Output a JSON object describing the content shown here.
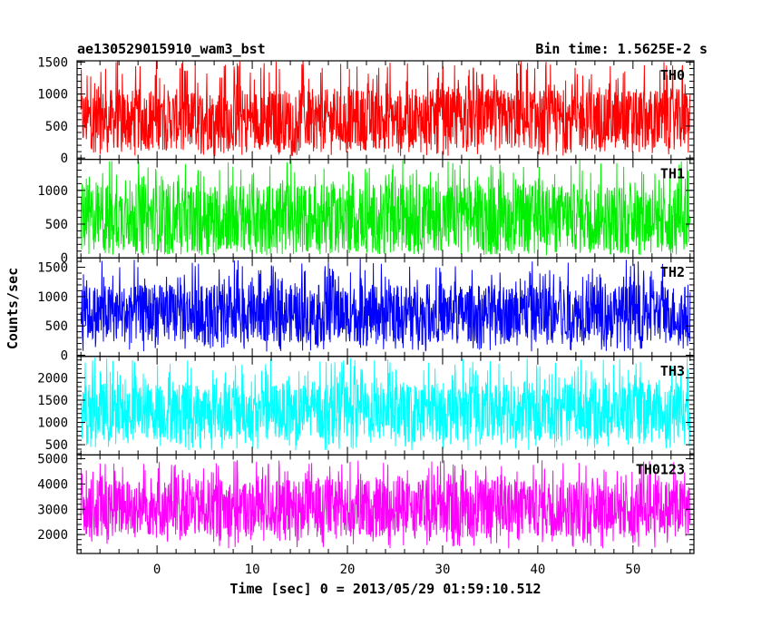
{
  "chart_data": {
    "type": "line",
    "title_left": "ae130529015910_wam3_bst",
    "title_right": "Bin time: 1.5625E-2 s",
    "xlabel": "Time [sec] 0 = 2013/05/29 01:59:10.512",
    "ylabel": "Counts/sec",
    "xlim": [
      -8.4,
      56.4
    ],
    "xticks": [
      "0",
      "10",
      "20",
      "30",
      "40",
      "50"
    ],
    "grid": false,
    "panels": [
      {
        "name": "TH0",
        "color": "#ff0000",
        "ylim": [
          -20,
          1520
        ],
        "yticks": [
          0,
          500,
          1000,
          1500
        ],
        "yticklabels": [
          "0",
          "500",
          "1000",
          "1500"
        ],
        "data_x_range": [
          -8,
          56
        ],
        "band": [
          130,
          1080
        ],
        "spread": [
          30,
          1530
        ]
      },
      {
        "name": "TH1",
        "color": "#00ee00",
        "ylim": [
          0,
          1460
        ],
        "yticks": [
          0,
          500,
          1000
        ],
        "yticklabels": [
          "0",
          "500",
          "1000"
        ],
        "data_x_range": [
          -8,
          56
        ],
        "band": [
          100,
          1100
        ],
        "spread": [
          40,
          1460
        ]
      },
      {
        "name": "TH2",
        "color": "#0000ff",
        "ylim": [
          -20,
          1660
        ],
        "yticks": [
          0,
          500,
          1000,
          1500
        ],
        "yticklabels": [
          "0",
          "500",
          "1000",
          "1500"
        ],
        "data_x_range": [
          -8,
          56
        ],
        "band": [
          220,
          1200
        ],
        "spread": [
          60,
          1660
        ]
      },
      {
        "name": "TH3",
        "color": "#00ffff",
        "ylim": [
          270,
          2480
        ],
        "yticks": [
          500,
          1000,
          1500,
          2000
        ],
        "yticklabels": [
          "500",
          "1000",
          "1500",
          "2000"
        ],
        "data_x_range": [
          -8,
          56
        ],
        "band": [
          600,
          1900
        ],
        "spread": [
          370,
          2460
        ]
      },
      {
        "name": "TH0123",
        "color": "#ff00ff",
        "ylim": [
          1250,
          5150
        ],
        "yticks": [
          2000,
          3000,
          4000,
          5000
        ],
        "yticklabels": [
          "2000",
          "3000",
          "4000",
          "5000"
        ],
        "data_x_range": [
          -8,
          56
        ],
        "band": [
          1900,
          4200
        ],
        "spread": [
          1450,
          4950
        ]
      }
    ]
  }
}
